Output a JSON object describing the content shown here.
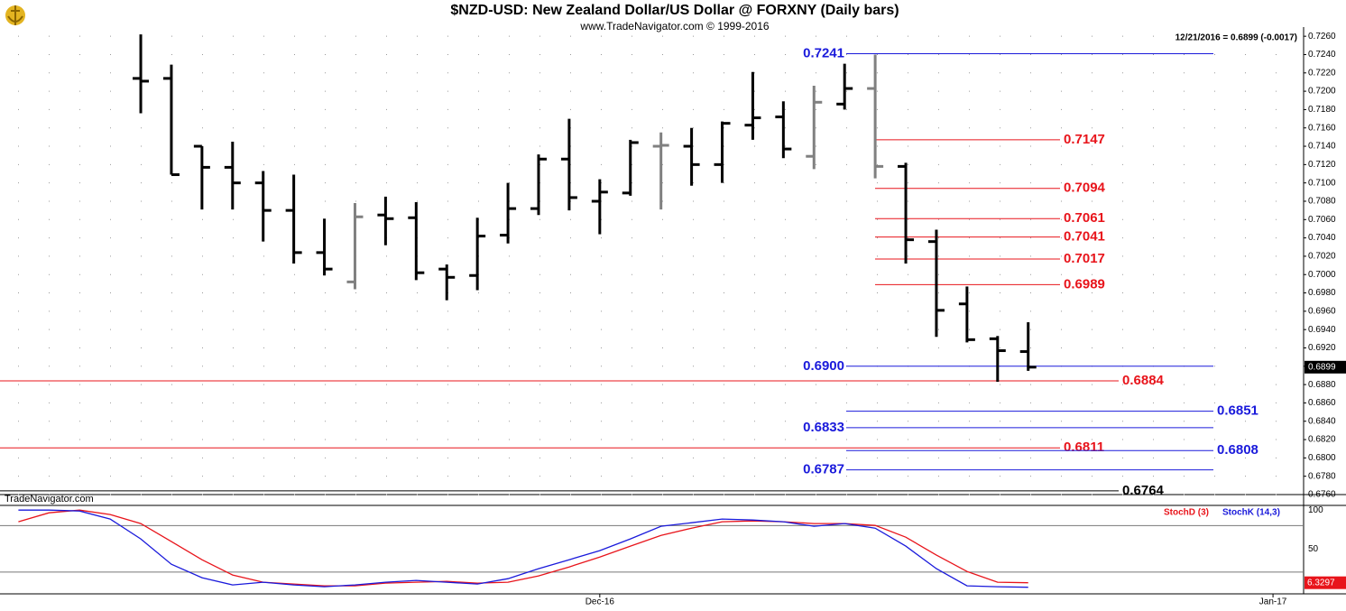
{
  "chart_data": [
    {
      "type": "ohlc",
      "title": "$NZD-USD:  New Zealand Dollar/US Dollar @ FORXNY  (Daily bars)",
      "subtitle": "www.TradeNavigator.com © 1999-2016",
      "last_quote": "12/21/2016 = 0.6899 (-0.0017)",
      "watermark": "TradeNavigator.com",
      "last_price": 0.6899,
      "open": [
        0.7214,
        0.7214,
        0.714,
        0.7117,
        0.71,
        0.707,
        0.7024,
        0.6992,
        0.7065,
        0.7062,
        0.7006,
        0.6999,
        0.7043,
        0.7072,
        0.7126,
        0.708,
        0.7089,
        0.714,
        0.714,
        0.712,
        0.7163,
        0.7172,
        0.7129,
        0.7186,
        0.7203,
        0.7118,
        0.7036,
        0.6968,
        0.693,
        0.6916
      ],
      "high": [
        0.7262,
        0.7229,
        0.714,
        0.7145,
        0.7113,
        0.7109,
        0.7061,
        0.7078,
        0.7085,
        0.7079,
        0.7011,
        0.7062,
        0.71,
        0.7131,
        0.717,
        0.7104,
        0.7147,
        0.7155,
        0.716,
        0.7167,
        0.7221,
        0.7189,
        0.7206,
        0.723,
        0.724,
        0.7122,
        0.7049,
        0.6987,
        0.6933,
        0.6948
      ],
      "low": [
        0.7176,
        0.7109,
        0.7071,
        0.7071,
        0.7036,
        0.7012,
        0.6999,
        0.6984,
        0.7032,
        0.6994,
        0.6972,
        0.6983,
        0.7034,
        0.7065,
        0.707,
        0.7044,
        0.7086,
        0.7071,
        0.7097,
        0.71,
        0.7147,
        0.7127,
        0.7115,
        0.718,
        0.7105,
        0.7012,
        0.6932,
        0.6926,
        0.6883,
        0.6895
      ],
      "close": [
        0.7211,
        0.7109,
        0.7117,
        0.71,
        0.707,
        0.7024,
        0.7006,
        0.7063,
        0.7061,
        0.7002,
        0.6997,
        0.7042,
        0.7072,
        0.7126,
        0.7084,
        0.709,
        0.7144,
        0.7141,
        0.712,
        0.7165,
        0.7171,
        0.7137,
        0.7188,
        0.7203,
        0.7118,
        0.7038,
        0.6961,
        0.6929,
        0.6917,
        0.6899
      ],
      "bar_colors": [
        "#000",
        "#000",
        "#000",
        "#000",
        "#000",
        "#000",
        "#000",
        "#808080",
        "#000",
        "#000",
        "#000",
        "#000",
        "#000",
        "#000",
        "#000",
        "#000",
        "#000",
        "#808080",
        "#000",
        "#000",
        "#000",
        "#000",
        "#808080",
        "#000",
        "#808080",
        "#000",
        "#000",
        "#000",
        "#000",
        "#000"
      ],
      "levels": {
        "values": [
          0.7241,
          0.7147,
          0.7094,
          0.7061,
          0.7041,
          0.7017,
          0.6989,
          0.69,
          0.6884,
          0.6851,
          0.6833,
          0.6811,
          0.6808,
          0.6787,
          0.6764
        ],
        "value_labels": [
          "0.7241",
          "0.7147",
          "0.7094",
          "0.7061",
          "0.7041",
          "0.7017",
          "0.6989",
          "0.6900",
          "0.6884",
          "0.6851",
          "0.6833",
          "0.6811",
          "0.6808",
          "0.6787",
          "0.6764"
        ],
        "colors": [
          "#1a1adb",
          "#e8141b",
          "#e8141b",
          "#e8141b",
          "#e8141b",
          "#e8141b",
          "#e8141b",
          "#1a1adb",
          "#e8141b",
          "#1a1adb",
          "#1a1adb",
          "#e8141b",
          "#1a1adb",
          "#1a1adb",
          "#000000"
        ]
      },
      "xlim": [
        -4.6,
        38
      ],
      "xticks": [
        {
          "value": 15,
          "label": "Dec-16"
        },
        {
          "value": 37,
          "label": "Jan-17"
        }
      ],
      "ylim": [
        0.676,
        0.727
      ],
      "yticks": [
        {
          "value": 0.676,
          "label": "0.6760"
        },
        {
          "value": 0.678,
          "label": "0.6780"
        },
        {
          "value": 0.68,
          "label": "0.6800"
        },
        {
          "value": 0.682,
          "label": "0.6820"
        },
        {
          "value": 0.684,
          "label": "0.6840"
        },
        {
          "value": 0.686,
          "label": "0.6860"
        },
        {
          "value": 0.688,
          "label": "0.6880"
        },
        {
          "value": 0.69,
          "label": "0.6900"
        },
        {
          "value": 0.692,
          "label": "0.6920"
        },
        {
          "value": 0.694,
          "label": "0.6940"
        },
        {
          "value": 0.696,
          "label": "0.6960"
        },
        {
          "value": 0.698,
          "label": "0.6980"
        },
        {
          "value": 0.7,
          "label": "0.7000"
        },
        {
          "value": 0.702,
          "label": "0.7020"
        },
        {
          "value": 0.704,
          "label": "0.7040"
        },
        {
          "value": 0.706,
          "label": "0.7060"
        },
        {
          "value": 0.708,
          "label": "0.7080"
        },
        {
          "value": 0.71,
          "label": "0.7100"
        },
        {
          "value": 0.712,
          "label": "0.7120"
        },
        {
          "value": 0.714,
          "label": "0.7140"
        },
        {
          "value": 0.716,
          "label": "0.7160"
        },
        {
          "value": 0.718,
          "label": "0.7180"
        },
        {
          "value": 0.72,
          "label": "0.7200"
        },
        {
          "value": 0.722,
          "label": "0.7220"
        },
        {
          "value": 0.724,
          "label": "0.7240"
        },
        {
          "value": 0.726,
          "label": "0.7260"
        }
      ],
      "grid": true
    },
    {
      "type": "line",
      "series": [
        {
          "name": "StochD (3)",
          "color": "#e8141b",
          "values": [
            84.9,
            96.5,
            100,
            94.2,
            82.6,
            59.3,
            36.0,
            16.3,
            7.0,
            4.7,
            2.3,
            2.3,
            5.8,
            7.0,
            8.1,
            5.8,
            7.0,
            15.1,
            26.7,
            39.5,
            53.5,
            67.4,
            76.7,
            84.9,
            86.0,
            84.9,
            82.6,
            82.6,
            80.2,
            65.1,
            41.9,
            20.9,
            7.0,
            6.3297
          ]
        },
        {
          "name": "StochK (14,3)",
          "color": "#1a1adb",
          "values": [
            100,
            100,
            98.8,
            88.4,
            62.8,
            30.2,
            12.8,
            3.5,
            7.0,
            3.5,
            1.2,
            3.5,
            7.0,
            9.3,
            7.0,
            4.7,
            11.6,
            24.4,
            36.0,
            47.7,
            62.8,
            79.1,
            83.7,
            88.4,
            87.2,
            84.9,
            79.1,
            82.6,
            76.7,
            53.5,
            24.4,
            2.3,
            1.2,
            0.5
          ]
        }
      ],
      "ylim": [
        -8,
        106
      ],
      "yticks": [
        50,
        100
      ],
      "reference_levels": [
        80,
        20
      ]
    }
  ]
}
